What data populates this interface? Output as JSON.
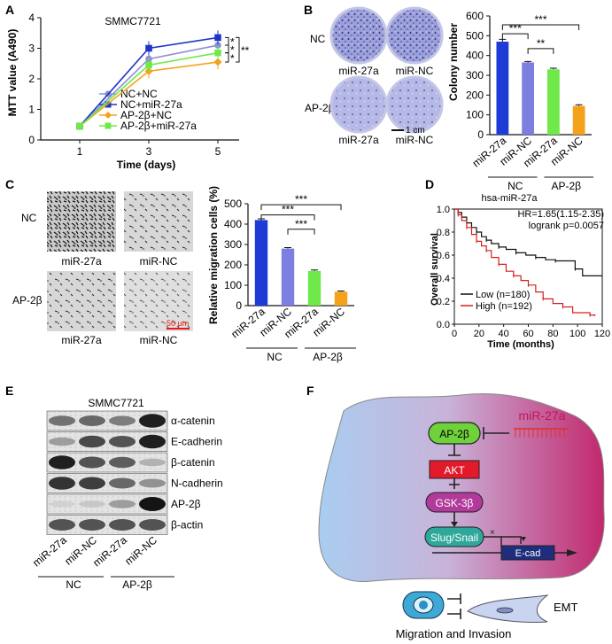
{
  "colors": {
    "blue": "#1f3bd6",
    "purple": "#7b7fe0",
    "green": "#6fe84a",
    "orange": "#f4a21c",
    "red_surv": "#d62020",
    "gray": "#9aa0e8"
  },
  "panels": {
    "A": "A",
    "B": "B",
    "C": "C",
    "D": "D",
    "E": "E",
    "F": "F"
  },
  "chart_data": [
    {
      "id": "A",
      "type": "line",
      "title": "SMMC7721",
      "xlabel": "Time (days)",
      "ylabel": "MTT value (A490)",
      "x": [
        1,
        3,
        5
      ],
      "ylim": [
        0,
        4
      ],
      "yticks": [
        "0",
        "1",
        "2",
        "3",
        "4"
      ],
      "xticks": [
        "1",
        "3",
        "5"
      ],
      "series": [
        {
          "name": "NC+NC",
          "values": [
            0.45,
            2.65,
            3.1
          ],
          "color": "#8c8fd6",
          "marker": "circle"
        },
        {
          "name": "NC+miR-27a",
          "values": [
            0.45,
            3.0,
            3.35
          ],
          "color": "#1f35c8",
          "marker": "square"
        },
        {
          "name": "AP-2β+NC",
          "values": [
            0.45,
            2.25,
            2.55
          ],
          "color": "#f4a21c",
          "marker": "diamond"
        },
        {
          "name": "AP-2β+miR-27a",
          "values": [
            0.45,
            2.45,
            2.85
          ],
          "color": "#6fe84a",
          "marker": "square"
        }
      ],
      "sig": [
        "*",
        "*",
        "*",
        "**"
      ]
    },
    {
      "id": "B",
      "type": "bar",
      "ylabel": "Colony number",
      "ylim": [
        0,
        600
      ],
      "yticks": [
        "0",
        "100",
        "200",
        "300",
        "400",
        "500",
        "600"
      ],
      "categories": [
        "miR-27a",
        "miR-NC",
        "miR-27a",
        "miR-NC"
      ],
      "values": [
        470,
        365,
        330,
        145
      ],
      "errors": [
        12,
        5,
        6,
        6
      ],
      "groups": [
        "NC",
        "AP-2β"
      ],
      "sig": [
        "***",
        "***",
        "**"
      ]
    },
    {
      "id": "C",
      "type": "bar",
      "ylabel": "Relative migration cells (%)",
      "ylim": [
        0,
        500
      ],
      "yticks": [
        "0",
        "100",
        "200",
        "300",
        "400",
        "500"
      ],
      "categories": [
        "miR-27a",
        "miR-NC",
        "miR-27a",
        "miR-NC"
      ],
      "values": [
        420,
        280,
        170,
        68
      ],
      "errors": [
        6,
        5,
        5,
        4
      ],
      "groups": [
        "NC",
        "AP-2β"
      ],
      "sig": [
        "***",
        "***",
        "***"
      ]
    },
    {
      "id": "D",
      "type": "line",
      "title": "hsa-miR-27a",
      "xlabel": "Time (months)",
      "ylabel": "Overall survival",
      "ylim": [
        0,
        1
      ],
      "yticks": [
        "0.0",
        "0.2",
        "0.4",
        "0.6",
        "0.8",
        "1.0"
      ],
      "xticks": [
        "0",
        "20",
        "40",
        "60",
        "80",
        "100",
        "120"
      ],
      "hr": "HR=1.65(1.15-2.35)",
      "logrank": "logrank p=0.0057",
      "series": [
        {
          "name": "Low (n=180)",
          "color": "#111111",
          "points": [
            [
              0,
              1
            ],
            [
              3,
              0.97
            ],
            [
              6,
              0.93
            ],
            [
              10,
              0.88
            ],
            [
              14,
              0.84
            ],
            [
              18,
              0.8
            ],
            [
              22,
              0.76
            ],
            [
              26,
              0.73
            ],
            [
              30,
              0.7
            ],
            [
              36,
              0.67
            ],
            [
              42,
              0.65
            ],
            [
              50,
              0.62
            ],
            [
              58,
              0.6
            ],
            [
              66,
              0.58
            ],
            [
              74,
              0.56
            ],
            [
              82,
              0.55
            ],
            [
              90,
              0.55
            ],
            [
              98,
              0.48
            ],
            [
              104,
              0.42
            ],
            [
              120,
              0.42
            ]
          ]
        },
        {
          "name": "High (n=192)",
          "color": "#d62020",
          "points": [
            [
              0,
              1
            ],
            [
              3,
              0.95
            ],
            [
              6,
              0.9
            ],
            [
              10,
              0.84
            ],
            [
              14,
              0.78
            ],
            [
              18,
              0.72
            ],
            [
              22,
              0.68
            ],
            [
              26,
              0.64
            ],
            [
              30,
              0.58
            ],
            [
              36,
              0.52
            ],
            [
              42,
              0.46
            ],
            [
              48,
              0.42
            ],
            [
              54,
              0.38
            ],
            [
              60,
              0.34
            ],
            [
              66,
              0.28
            ],
            [
              72,
              0.22
            ],
            [
              80,
              0.18
            ],
            [
              88,
              0.15
            ],
            [
              96,
              0.1
            ],
            [
              110,
              0.08
            ],
            [
              114,
              0.07
            ]
          ]
        }
      ]
    }
  ],
  "panelB": {
    "row_labels": [
      "NC",
      "AP-2β"
    ],
    "col_labels": [
      "miR-27a",
      "miR-NC"
    ],
    "scale": "1 cm"
  },
  "panelC": {
    "row_labels": [
      "NC",
      "AP-2β"
    ],
    "col_labels": [
      "miR-27a",
      "miR-NC"
    ],
    "scale": "50 μm"
  },
  "panelE": {
    "title": "SMMC7721",
    "proteins": [
      "α-catenin",
      "E-cadherin",
      "β-catenin",
      "N-cadherin",
      "AP-2β",
      "β-actin"
    ],
    "lanes": [
      "miR-27a",
      "miR-NC",
      "miR-27a",
      "miR-NC"
    ],
    "groups": [
      "NC",
      "AP-2β"
    ]
  },
  "panelF": {
    "mir": "miR-27a",
    "ap2b": "AP-2β",
    "akt": "AKT",
    "gsk": "GSK-3β",
    "slug": "Slug/Snail",
    "ecad": "E-cad",
    "emt": "EMT",
    "bottom": "Migration and Invasion"
  }
}
